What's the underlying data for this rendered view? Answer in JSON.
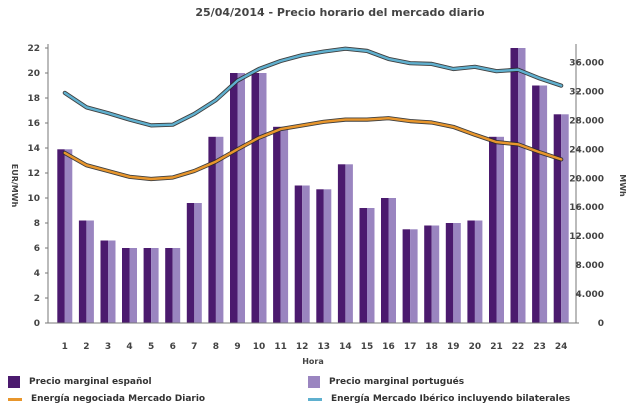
{
  "chart_data": {
    "type": "bar+line",
    "title": "25/04/2014 - Precio horario del mercado diario",
    "xlabel": "Hora",
    "ylabel_left": "EUR/MWh",
    "ylabel_right": "MWh",
    "categories": [
      "1",
      "2",
      "3",
      "4",
      "5",
      "6",
      "7",
      "8",
      "9",
      "10",
      "11",
      "12",
      "13",
      "14",
      "15",
      "16",
      "17",
      "18",
      "19",
      "20",
      "21",
      "22",
      "23",
      "24"
    ],
    "ylim_left": [
      0,
      22
    ],
    "ylim_right": [
      0,
      38000
    ],
    "yticks_left": [
      0,
      2,
      4,
      6,
      8,
      10,
      12,
      14,
      16,
      18,
      20,
      22
    ],
    "yticks_right": [
      "0",
      "4.000",
      "8.000",
      "12.000",
      "16.000",
      "20.000",
      "24.000",
      "28.000",
      "32.000",
      "36.000"
    ],
    "yticks_right_values": [
      0,
      4000,
      8000,
      12000,
      16000,
      20000,
      24000,
      28000,
      32000,
      36000
    ],
    "grid": false,
    "legend_position": "bottom",
    "series": [
      {
        "name": "Precio marginal español",
        "kind": "bar",
        "axis": "left",
        "color": "#4b1a6e",
        "values": [
          13.9,
          8.2,
          6.6,
          6.0,
          6.0,
          6.0,
          9.6,
          14.9,
          20.0,
          20.0,
          15.7,
          11.0,
          10.7,
          12.7,
          9.2,
          10.0,
          7.5,
          7.8,
          8.0,
          8.2,
          14.9,
          22.0,
          19.0,
          16.7
        ]
      },
      {
        "name": "Precio marginal portugués",
        "kind": "bar",
        "axis": "left",
        "color": "#9a85c0",
        "values": [
          13.9,
          8.2,
          6.6,
          6.0,
          6.0,
          6.0,
          9.6,
          14.9,
          20.0,
          20.0,
          15.7,
          11.0,
          10.7,
          12.7,
          9.2,
          10.0,
          7.5,
          7.8,
          8.0,
          8.2,
          14.9,
          22.0,
          19.0,
          16.7
        ]
      },
      {
        "name": "Energía negociada Mercado Diario",
        "kind": "line",
        "axis": "right",
        "color": "#e8962c",
        "values": [
          23500,
          21800,
          21000,
          20200,
          19900,
          20100,
          21000,
          22300,
          24000,
          25600,
          26800,
          27300,
          27800,
          28100,
          28100,
          28300,
          27900,
          27700,
          27100,
          26000,
          25000,
          24700,
          23600,
          22600
        ]
      },
      {
        "name": "Energía Mercado Ibérico incluyendo bilaterales",
        "kind": "line",
        "axis": "right",
        "color": "#5fb0cf",
        "values": [
          31800,
          29800,
          29000,
          28100,
          27300,
          27400,
          28900,
          30800,
          33500,
          35100,
          36200,
          37000,
          37500,
          37900,
          37600,
          36500,
          35900,
          35800,
          35100,
          35400,
          34800,
          35000,
          33800,
          32800
        ]
      }
    ]
  }
}
